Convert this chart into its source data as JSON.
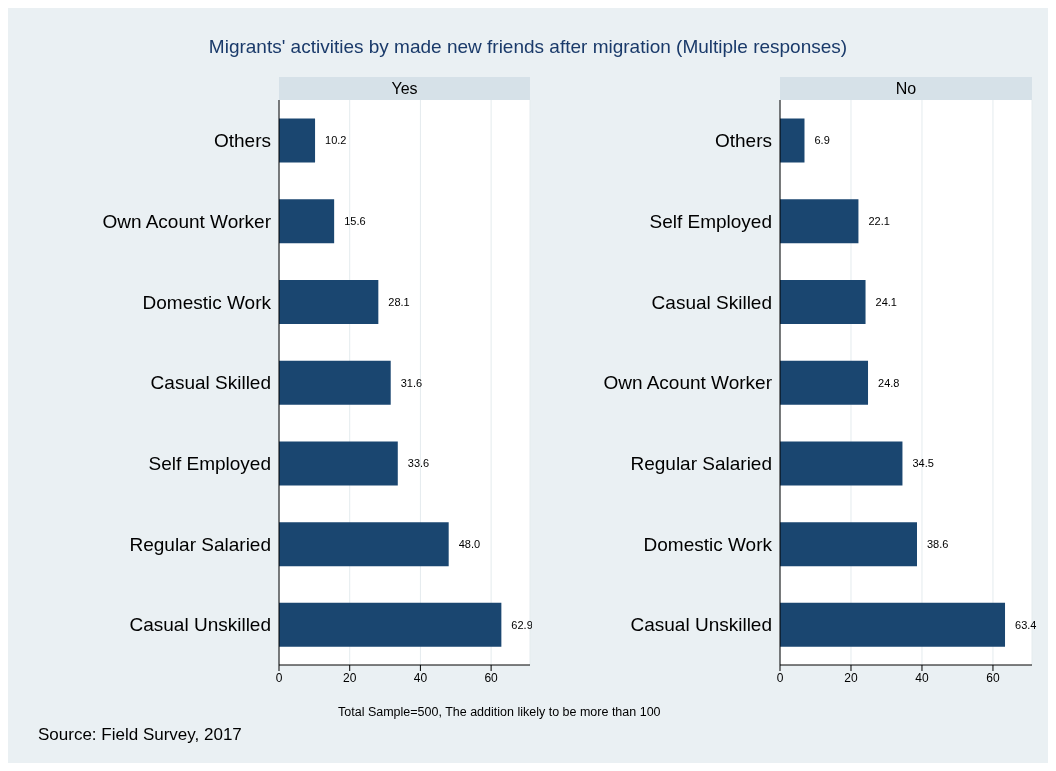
{
  "chart_data": [
    {
      "type": "bar",
      "orientation": "horizontal",
      "title": "Migrants' activities by made new friends after migration (Multiple responses)",
      "subtitle": "Yes",
      "categories": [
        "Others",
        "Own Acount Worker",
        "Domestic Work",
        "Casual Skilled",
        "Self Employed",
        "Regular Salaried",
        "Casual Unskilled"
      ],
      "values": [
        10.2,
        15.6,
        28.1,
        31.6,
        33.6,
        48.0,
        62.9
      ],
      "value_labels": [
        "10.2",
        "15.6",
        "28.1",
        "31.6",
        "33.6",
        "48.0",
        "62.9"
      ],
      "color": "#1a4670",
      "xlim": [
        0,
        71
      ],
      "xticks": [
        0,
        20,
        40,
        60
      ],
      "grid": "x",
      "legend": false,
      "annotations": [
        "Total Sample=500, The addition likely to be more than 100",
        "Source: Field Survey, 2017"
      ]
    },
    {
      "type": "bar",
      "orientation": "horizontal",
      "subtitle": "No",
      "categories": [
        "Others",
        "Self Employed",
        "Casual Skilled",
        "Own Acount Worker",
        "Regular Salaried",
        "Domestic Work",
        "Casual Unskilled"
      ],
      "values": [
        6.9,
        22.1,
        24.1,
        24.8,
        34.5,
        38.6,
        63.4
      ],
      "value_labels": [
        "6.9",
        "22.1",
        "24.1",
        "24.8",
        "34.5",
        "38.6",
        "63.4"
      ],
      "color": "#1a4670",
      "xlim": [
        0,
        71
      ],
      "xticks": [
        0,
        20,
        40,
        60
      ],
      "grid": "x",
      "legend": false
    }
  ]
}
